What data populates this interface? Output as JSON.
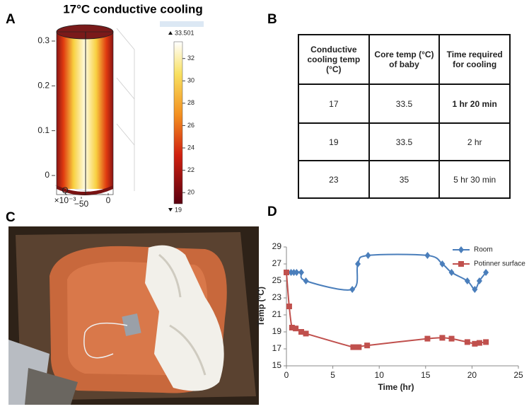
{
  "panel_labels": [
    "A",
    "B",
    "C",
    "D"
  ],
  "panel_a": {
    "title": "17°C conductive cooling",
    "zlim": [
      0,
      0.3
    ],
    "zticks": [
      0,
      0.1,
      0.2,
      0.3
    ],
    "x_axis_label": "Q",
    "x_axis_exponent": "×10⁻³",
    "xticks": [
      {
        "value": -50,
        "label": "−50"
      },
      0
    ],
    "colorbar": {
      "lim": [
        19,
        33.501
      ],
      "ticks": [
        20,
        22,
        24,
        26,
        28,
        30,
        32
      ],
      "max": {
        "value": 33.501,
        "label": "33.501"
      },
      "min": 19
    }
  },
  "table": {
    "header": [
      "Conductive cooling temp (°C)",
      "Core temp (°C) of baby",
      "Time required for cooling"
    ],
    "rows": [
      [
        "17",
        "33.5",
        "1 hr 20 min"
      ],
      [
        "19",
        "33.5",
        "2 hr"
      ],
      [
        "23",
        "35",
        "5 hr 30 min"
      ]
    ]
  },
  "chart_data": {
    "type": "line",
    "x_label": "Time (hr)",
    "y_label": "Temp (°C)",
    "xlim": [
      0,
      25
    ],
    "xticks": [
      0,
      5,
      10,
      15,
      20,
      25
    ],
    "ylim": [
      15,
      29
    ],
    "yticks": [
      15,
      17,
      19,
      21,
      23,
      25,
      27,
      29
    ],
    "legend": "upper right",
    "series": [
      {
        "name": "Room",
        "color": "#4a7ebb",
        "marker": "diamond",
        "x": [
          0,
          0.5,
          0.8,
          1.1,
          1.6,
          2.1,
          7.1,
          7.7,
          8.8,
          15.2,
          16.8,
          17.8,
          19.5,
          20.3,
          20.8,
          21.5
        ],
        "values": [
          26,
          26,
          26,
          26,
          26,
          25,
          24,
          27,
          28,
          28,
          27,
          26,
          25,
          24,
          25,
          26
        ]
      },
      {
        "name": "Potinner surface",
        "color": "#c0504d",
        "marker": "square",
        "x": [
          0,
          0.3,
          0.6,
          1.0,
          1.6,
          2.1,
          7.2,
          7.8,
          8.7,
          15.2,
          16.8,
          17.8,
          19.5,
          20.3,
          20.8,
          21.5
        ],
        "values": [
          26,
          22,
          19.5,
          19.4,
          19,
          18.8,
          17.2,
          17.2,
          17.4,
          18.2,
          18.3,
          18.2,
          17.8,
          17.6,
          17.7,
          17.8
        ]
      }
    ]
  }
}
